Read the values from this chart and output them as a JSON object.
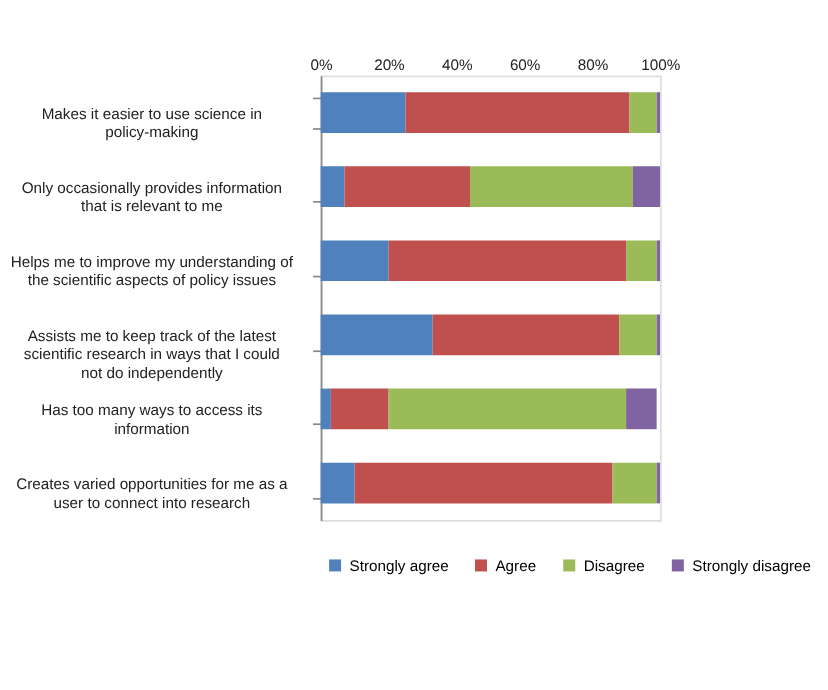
{
  "chart_data": {
    "type": "bar",
    "orientation": "horizontal",
    "stacked": true,
    "categories": [
      "Makes it easier to use science in policy-making",
      "Only occasionally provides information that is relevant to me",
      "Helps me to improve my understanding of the scientific aspects of policy issues",
      "Assists me to keep track of the latest scientific research in ways that I could not do independently",
      "Has too many ways to access its information",
      "Creates varied opportunities for me as a user to connect into research"
    ],
    "series": [
      {
        "name": "Strongly agree",
        "color": "#4f81bd",
        "values": [
          25,
          7,
          20,
          33,
          3,
          10
        ]
      },
      {
        "name": "Agree",
        "color": "#c0504d",
        "values": [
          66,
          37,
          70,
          55,
          17,
          76
        ]
      },
      {
        "name": "Disagree",
        "color": "#9bbb59",
        "values": [
          8,
          48,
          9,
          11,
          70,
          13
        ]
      },
      {
        "name": "Strongly disagree",
        "color": "#8064a2",
        "values": [
          1,
          8,
          1,
          1,
          9,
          1
        ]
      }
    ],
    "xlim": [
      0,
      100
    ],
    "xticks": [
      {
        "value": 0,
        "label": "0%"
      },
      {
        "value": 20,
        "label": "20%"
      },
      {
        "value": 40,
        "label": "40%"
      },
      {
        "value": 60,
        "label": "60%"
      },
      {
        "value": 80,
        "label": "80%"
      },
      {
        "value": 100,
        "label": "100%"
      }
    ],
    "legend": "bottom",
    "grid": false
  }
}
